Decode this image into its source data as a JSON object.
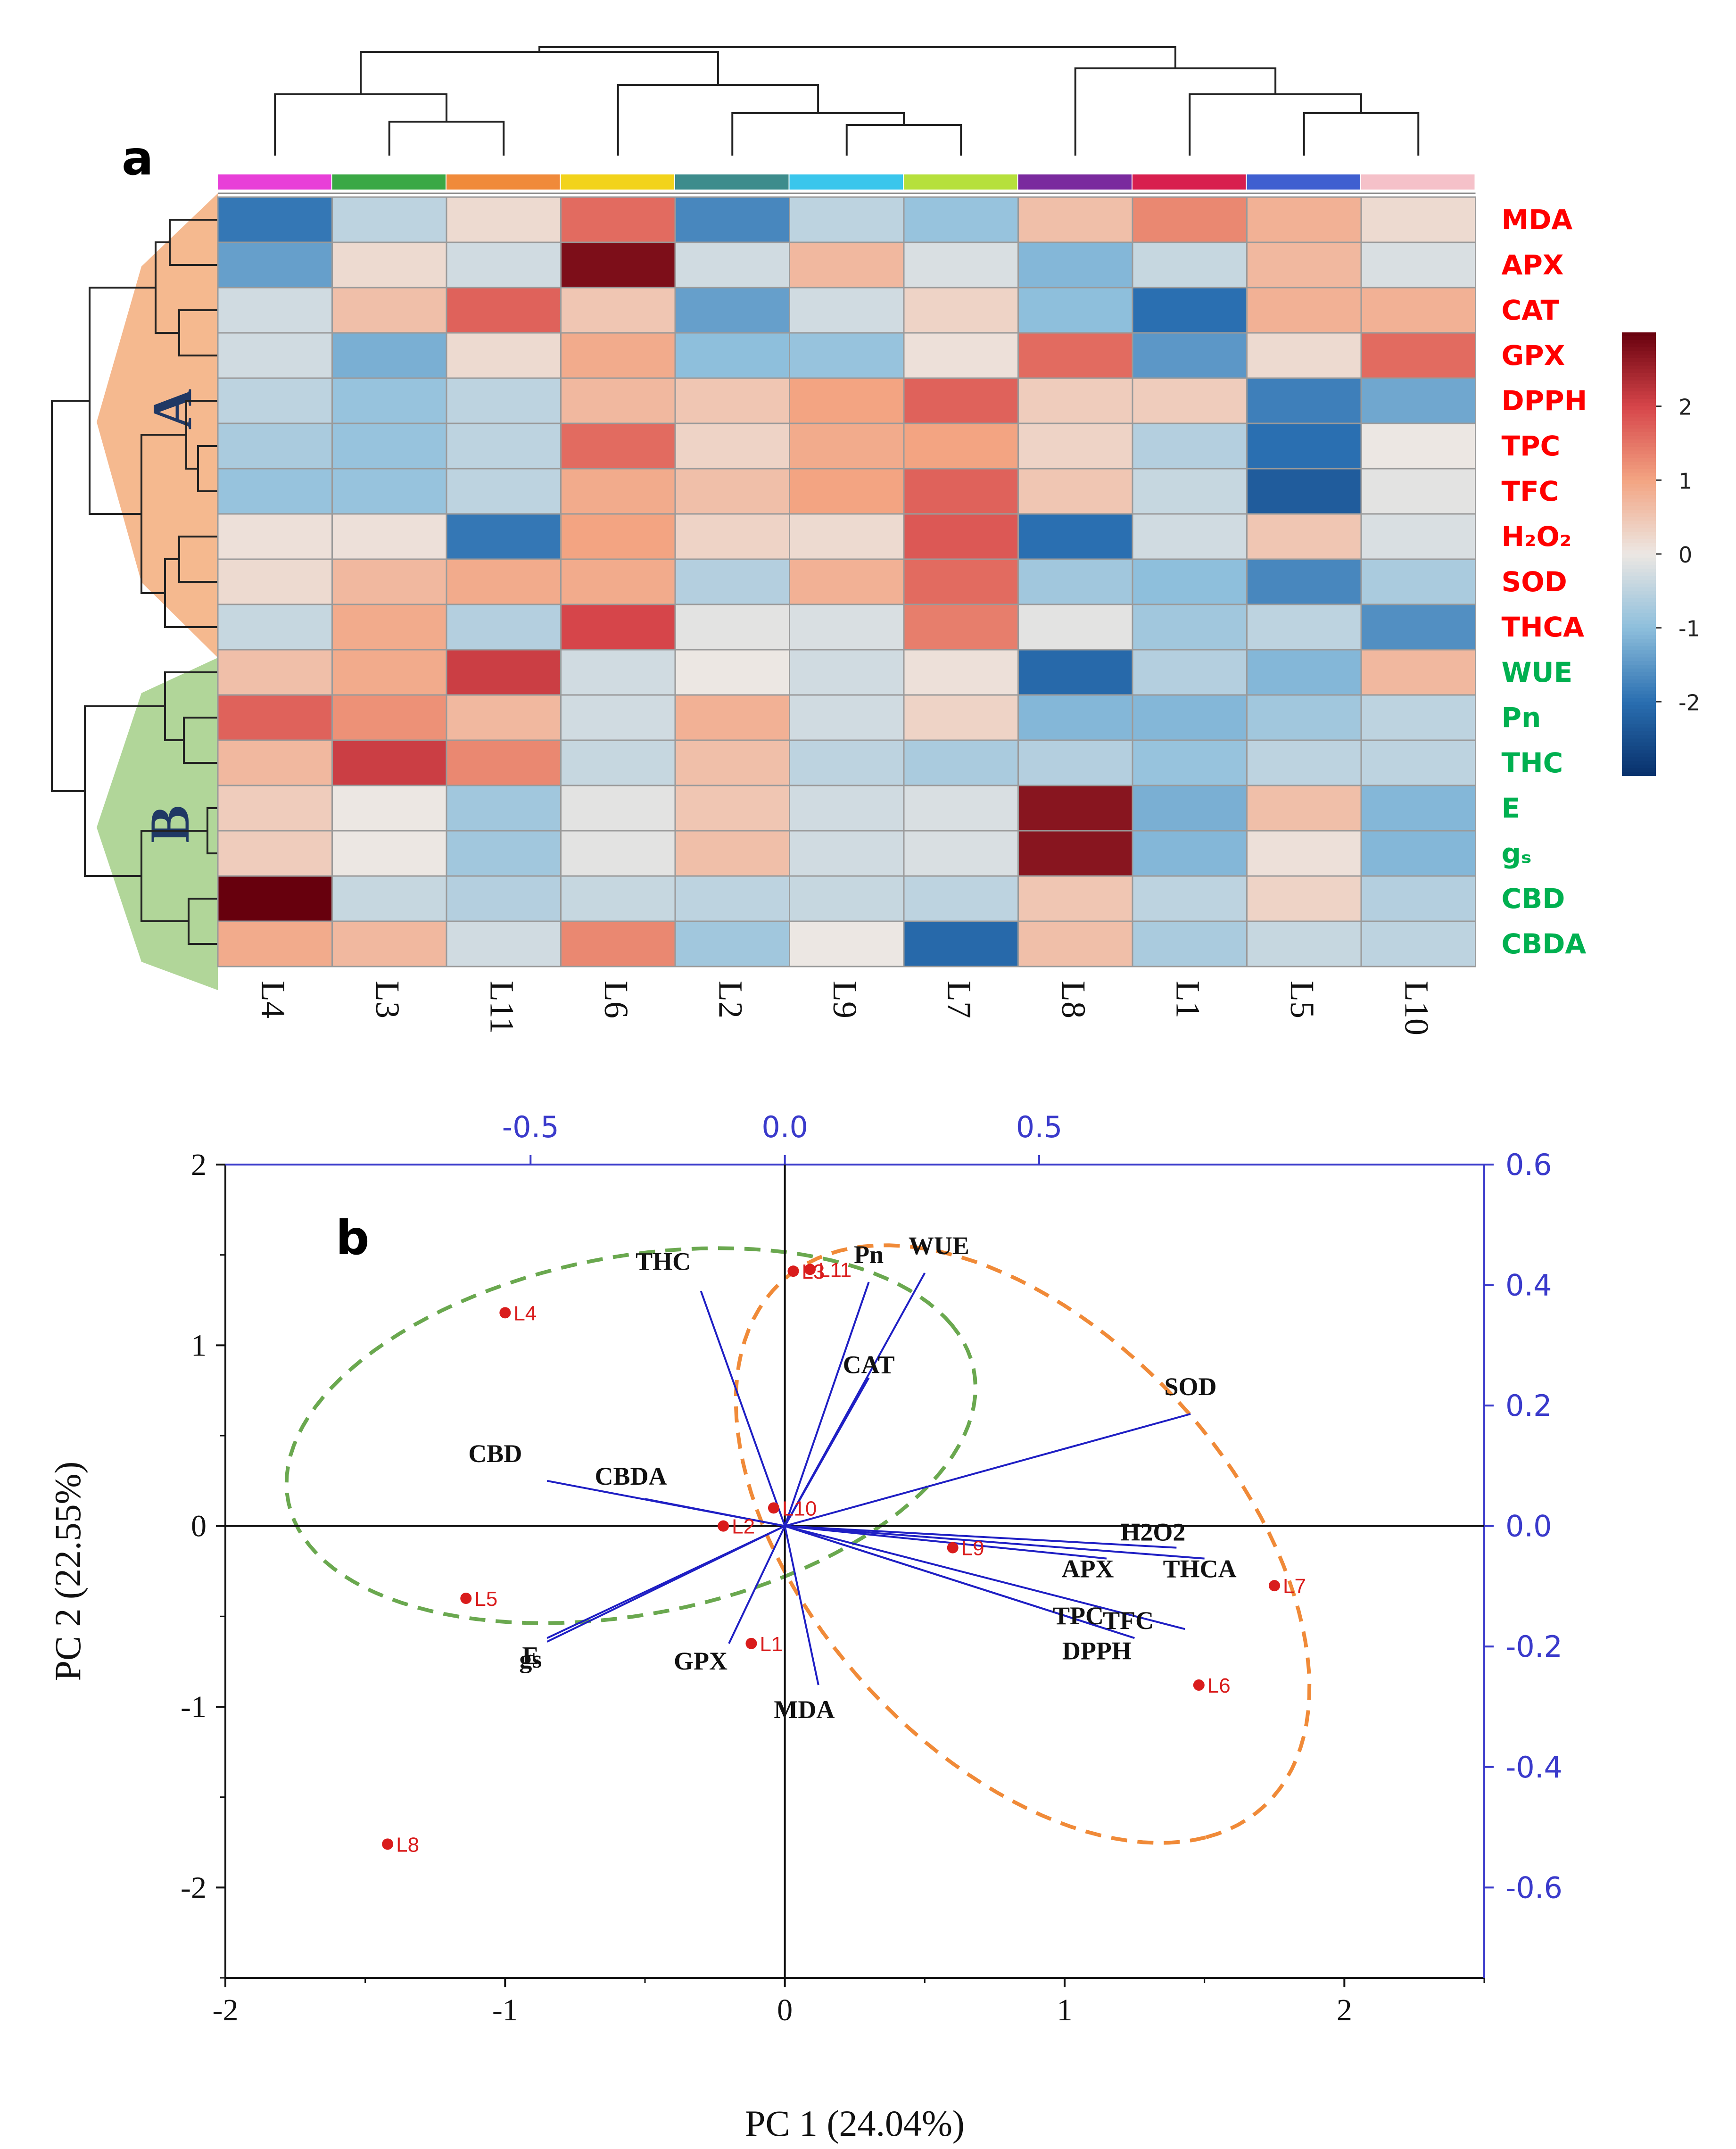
{
  "panel_a": {
    "label": "a",
    "group_a_label": "A",
    "group_b_label": "B",
    "colors": {
      "group_a_fill": "#f4b183",
      "group_b_fill": "#a9d18e",
      "group_a_text": "#ff0000",
      "group_b_text": "#00b050",
      "group_letter": "#1f3864"
    }
  },
  "panel_b": {
    "label": "b",
    "colors": {
      "vector": "#1f1fc4",
      "point": "#d91c1c",
      "ellipse_green": "#6aa84f",
      "ellipse_orange": "#f08a38",
      "axis_top_right": "#3a3acb"
    }
  },
  "chart_data": [
    {
      "type": "heatmap",
      "title": "",
      "columns": [
        "L4",
        "L3",
        "L11",
        "L6",
        "L2",
        "L9",
        "L7",
        "L8",
        "L1",
        "L5",
        "L10"
      ],
      "column_colors": [
        "#e83fd8",
        "#3aa845",
        "#f08a3a",
        "#f2d31b",
        "#3d8c8c",
        "#3ac6ec",
        "#b6e03c",
        "#7a2a9e",
        "#d81f4e",
        "#3f5fd0",
        "#f5c1c9"
      ],
      "rows": [
        {
          "label": "MDA",
          "group": "A"
        },
        {
          "label": "APX",
          "group": "A"
        },
        {
          "label": "CAT",
          "group": "A"
        },
        {
          "label": "GPX",
          "group": "A"
        },
        {
          "label": "DPPH",
          "group": "A"
        },
        {
          "label": "TPC",
          "group": "A"
        },
        {
          "label": "TFC",
          "group": "A"
        },
        {
          "label": "H₂O₂",
          "group": "A"
        },
        {
          "label": "SOD",
          "group": "A"
        },
        {
          "label": "THCA",
          "group": "A"
        },
        {
          "label": "WUE",
          "group": "B"
        },
        {
          "label": "Pn",
          "group": "B"
        },
        {
          "label": "THC",
          "group": "B"
        },
        {
          "label": "E",
          "group": "B"
        },
        {
          "label": "gₛ",
          "group": "B"
        },
        {
          "label": "CBD",
          "group": "B"
        },
        {
          "label": "CBDA",
          "group": "B"
        }
      ],
      "values": [
        [
          -1.9,
          -0.5,
          0.2,
          1.6,
          -1.7,
          -0.5,
          -0.9,
          0.6,
          1.3,
          0.8,
          0.2
        ],
        [
          -1.4,
          0.2,
          -0.3,
          2.8,
          -0.3,
          0.7,
          -0.2,
          -1.1,
          -0.4,
          0.7,
          -0.2
        ],
        [
          -0.3,
          0.6,
          1.7,
          0.5,
          -1.4,
          -0.3,
          0.3,
          -1.0,
          -2.0,
          0.8,
          0.8
        ],
        [
          -0.3,
          -1.2,
          0.2,
          0.9,
          -1.0,
          -0.9,
          0.1,
          1.6,
          -1.5,
          0.2,
          1.6
        ],
        [
          -0.5,
          -0.9,
          -0.5,
          0.7,
          0.5,
          1.0,
          1.7,
          0.4,
          0.4,
          -1.8,
          -1.3
        ],
        [
          -0.7,
          -0.9,
          -0.5,
          1.6,
          0.3,
          0.9,
          1.0,
          0.3,
          -0.6,
          -2.0,
          0.0
        ],
        [
          -0.9,
          -0.9,
          -0.5,
          0.9,
          0.6,
          1.0,
          1.7,
          0.5,
          -0.4,
          -2.3,
          -0.1
        ],
        [
          0.1,
          0.1,
          -1.9,
          1.0,
          0.3,
          0.2,
          1.8,
          -2.0,
          -0.3,
          0.5,
          -0.2
        ],
        [
          0.2,
          0.7,
          0.9,
          0.9,
          -0.6,
          0.8,
          1.6,
          -0.8,
          -1.0,
          -1.7,
          -0.7
        ],
        [
          -0.4,
          0.9,
          -0.6,
          2.0,
          -0.1,
          -0.2,
          1.4,
          -0.1,
          -0.8,
          -0.5,
          -1.6
        ],
        [
          0.6,
          0.9,
          2.1,
          -0.3,
          0.0,
          -0.3,
          0.1,
          -2.1,
          -0.6,
          -1.1,
          0.7
        ],
        [
          1.7,
          1.2,
          0.7,
          -0.3,
          0.8,
          -0.3,
          0.3,
          -1.1,
          -1.1,
          -0.8,
          -0.5
        ],
        [
          0.7,
          2.1,
          1.3,
          -0.4,
          0.6,
          -0.5,
          -0.7,
          -0.6,
          -0.9,
          -0.5,
          -0.5
        ],
        [
          0.4,
          0.0,
          -0.8,
          -0.1,
          0.5,
          -0.3,
          -0.2,
          2.7,
          -1.2,
          0.6,
          -1.1
        ],
        [
          0.4,
          0.0,
          -0.8,
          -0.1,
          0.6,
          -0.3,
          -0.2,
          2.7,
          -1.1,
          0.1,
          -1.1
        ],
        [
          3.0,
          -0.4,
          -0.6,
          -0.4,
          -0.5,
          -0.4,
          -0.5,
          0.5,
          -0.5,
          0.3,
          -0.6
        ],
        [
          0.9,
          0.7,
          -0.3,
          1.3,
          -0.8,
          0.0,
          -2.1,
          0.6,
          -0.7,
          -0.4,
          -0.5
        ]
      ],
      "colorbar": {
        "range": [
          -3,
          3
        ],
        "ticks": [
          "2",
          "1",
          "0",
          "-1",
          "-2"
        ],
        "tick_values": [
          2,
          1,
          0,
          -1,
          -2
        ]
      }
    },
    {
      "type": "scatter",
      "subtype": "pca-biplot",
      "title": "",
      "xlabel": "PC 1 (24.04%)",
      "ylabel": "PC 2 (22.55%)",
      "xlim": [
        -2,
        2.5
      ],
      "ylim": [
        -2.5,
        2
      ],
      "x_ticks": [
        "-2",
        "-1",
        "0",
        "1",
        "2"
      ],
      "x_tick_values": [
        -2,
        -1,
        0,
        1,
        2
      ],
      "y_ticks": [
        "2",
        "1",
        "0",
        "-1",
        "-2"
      ],
      "y_tick_values": [
        2,
        1,
        0,
        -1,
        -2
      ],
      "top_axis": {
        "ticks": [
          "-0.5",
          "0.0",
          "0.5"
        ],
        "tick_values": [
          -0.5,
          0.0,
          0.5
        ],
        "scale": 0.55
      },
      "right_axis": {
        "ticks": [
          "0.6",
          "0.4",
          "0.2",
          "0.0",
          "-0.2",
          "-0.4",
          "-0.6"
        ],
        "tick_values": [
          0.6,
          0.4,
          0.2,
          0.0,
          -0.2,
          -0.4,
          -0.6
        ],
        "scale": 0.3
      },
      "points": [
        {
          "label": "L4",
          "x": -1.0,
          "y": 1.18
        },
        {
          "label": "L11",
          "x": 0.09,
          "y": 1.42
        },
        {
          "label": "L3",
          "x": 0.03,
          "y": 1.41
        },
        {
          "label": "L5",
          "x": -1.14,
          "y": -0.4
        },
        {
          "label": "L8",
          "x": -1.42,
          "y": -1.76
        },
        {
          "label": "L7",
          "x": 1.75,
          "y": -0.33
        },
        {
          "label": "L6",
          "x": 1.48,
          "y": -0.88
        },
        {
          "label": "L9",
          "x": 0.6,
          "y": -0.12
        },
        {
          "label": "L1",
          "x": -0.12,
          "y": -0.65
        },
        {
          "label": "L2",
          "x": -0.22,
          "y": 0.0
        },
        {
          "label": "L10",
          "x": -0.04,
          "y": 0.1
        }
      ],
      "vectors": [
        {
          "label": "THC",
          "x": -0.3,
          "y": 1.3
        },
        {
          "label": "Pn",
          "x": 0.3,
          "y": 1.35
        },
        {
          "label": "WUE",
          "x": 0.5,
          "y": 1.4
        },
        {
          "label": "CAT",
          "x": 0.3,
          "y": 0.82
        },
        {
          "label": "SOD",
          "x": 1.45,
          "y": 0.62
        },
        {
          "label": "CBD",
          "x": -0.85,
          "y": 0.25
        },
        {
          "label": "CBDA",
          "x": -0.5,
          "y": 0.15
        },
        {
          "label": "H2O2",
          "x": 1.4,
          "y": -0.12
        },
        {
          "label": "THCA",
          "x": 1.5,
          "y": -0.18
        },
        {
          "label": "APX",
          "x": 1.15,
          "y": -0.18
        },
        {
          "label": "TPC",
          "x": 1.15,
          "y": -0.57
        },
        {
          "label": "TFC",
          "x": 1.43,
          "y": -0.57
        },
        {
          "label": "DPPH",
          "x": 1.25,
          "y": -0.62
        },
        {
          "label": "E",
          "x": -0.85,
          "y": -0.62
        },
        {
          "label": "gs",
          "x": -0.85,
          "y": -0.64
        },
        {
          "label": "GPX",
          "x": -0.2,
          "y": -0.65
        },
        {
          "label": "MDA",
          "x": 0.12,
          "y": -0.88
        }
      ],
      "vector_label_text": {
        "THC": "THC",
        "Pn": "Pn",
        "WUE": "WUE",
        "CAT": "CAT",
        "SOD": "SOD",
        "CBD": "CBD",
        "CBDA": "CBDA",
        "H2O2": "H2O2",
        "THCA": "THCA",
        "APX": "APX",
        "TPC": "TPC",
        "TFC": "TFC",
        "DPPH": "DPPH",
        "E": "E",
        "gs": "gs",
        "GPX": "GPX",
        "MDA": "MDA"
      },
      "ellipses": [
        {
          "name": "green",
          "cx": -0.55,
          "cy": 0.5,
          "rx": 1.3,
          "ry": 0.95,
          "angle_deg": 28
        },
        {
          "name": "orange",
          "cx": 0.85,
          "cy": -0.1,
          "rx": 1.75,
          "ry": 0.85,
          "angle_deg": -68
        }
      ]
    }
  ]
}
